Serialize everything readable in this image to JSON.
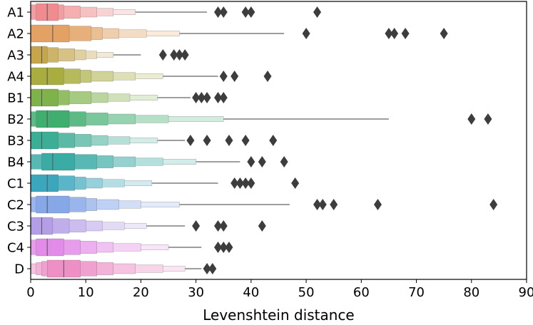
{
  "chart_data": {
    "type": "boxen",
    "title": "",
    "xlabel": "Levenshtein distance",
    "ylabel": "",
    "xlim": [
      0,
      90
    ],
    "xticks": [
      0,
      10,
      20,
      30,
      40,
      50,
      60,
      70,
      80,
      90
    ],
    "grid": false,
    "outlier_color": "#3d3d3d",
    "categories": [
      {
        "name": "A1",
        "color": "#f08c8f",
        "median": 3,
        "levels": [
          [
            1,
            5
          ],
          [
            0,
            6
          ],
          [
            0,
            9
          ],
          [
            0,
            12
          ],
          [
            0,
            15
          ],
          [
            0,
            19
          ]
        ],
        "whisker_max": 32,
        "outliers": [
          34,
          35,
          39,
          40,
          52
        ]
      },
      {
        "name": "A2",
        "color": "#e3a263",
        "median": 4,
        "levels": [
          [
            0,
            7
          ],
          [
            0,
            11
          ],
          [
            0,
            13
          ],
          [
            0,
            16
          ],
          [
            0,
            21
          ],
          [
            0,
            27
          ]
        ],
        "whisker_max": 46,
        "outliers": [
          50,
          65,
          66,
          68,
          75
        ]
      },
      {
        "name": "A3",
        "color": "#c5a64d",
        "median": 2,
        "levels": [
          [
            0,
            3
          ],
          [
            0,
            5
          ],
          [
            0,
            8
          ],
          [
            0,
            10
          ],
          [
            0,
            12
          ],
          [
            0,
            15
          ]
        ],
        "whisker_max": 20,
        "outliers": [
          24,
          26,
          27,
          28
        ]
      },
      {
        "name": "A4",
        "color": "#a9ac3e",
        "median": 3,
        "levels": [
          [
            0,
            6
          ],
          [
            0,
            9
          ],
          [
            0,
            11
          ],
          [
            0,
            15
          ],
          [
            0,
            19
          ],
          [
            0,
            24
          ]
        ],
        "whisker_max": 34,
        "outliers": [
          35,
          37,
          43
        ]
      },
      {
        "name": "B1",
        "color": "#7fb24a",
        "median": 2,
        "levels": [
          [
            0,
            5
          ],
          [
            0,
            7
          ],
          [
            0,
            11
          ],
          [
            0,
            14
          ],
          [
            0,
            18
          ],
          [
            0,
            23
          ]
        ],
        "whisker_max": 29,
        "outliers": [
          30,
          31,
          32,
          34,
          35
        ]
      },
      {
        "name": "B2",
        "color": "#3fae6f",
        "median": 3,
        "levels": [
          [
            1,
            7
          ],
          [
            0,
            10
          ],
          [
            0,
            14
          ],
          [
            0,
            19
          ],
          [
            0,
            25
          ],
          [
            0,
            35
          ]
        ],
        "whisker_max": 65,
        "outliers": [
          80,
          83
        ]
      },
      {
        "name": "B3",
        "color": "#3cae96",
        "median": 2,
        "levels": [
          [
            0,
            5
          ],
          [
            0,
            8
          ],
          [
            0,
            11
          ],
          [
            0,
            14
          ],
          [
            0,
            18
          ],
          [
            0,
            23
          ]
        ],
        "whisker_max": 28,
        "outliers": [
          29,
          32,
          36,
          39,
          44
        ]
      },
      {
        "name": "B4",
        "color": "#3aaba5",
        "median": 4,
        "levels": [
          [
            2,
            8
          ],
          [
            0,
            12
          ],
          [
            0,
            15
          ],
          [
            0,
            19
          ],
          [
            0,
            24
          ],
          [
            0,
            30
          ]
        ],
        "whisker_max": 38,
        "outliers": [
          40,
          42,
          46
        ]
      },
      {
        "name": "C1",
        "color": "#3ba7bd",
        "median": 3,
        "levels": [
          [
            0,
            5
          ],
          [
            0,
            8
          ],
          [
            0,
            10
          ],
          [
            0,
            13
          ],
          [
            0,
            17
          ],
          [
            0,
            22
          ]
        ],
        "whisker_max": 34,
        "outliers": [
          37,
          38,
          39,
          40,
          48
        ]
      },
      {
        "name": "C2",
        "color": "#87a8e8",
        "median": 3,
        "levels": [
          [
            1,
            7
          ],
          [
            0,
            10
          ],
          [
            0,
            12
          ],
          [
            0,
            16
          ],
          [
            0,
            20
          ],
          [
            0,
            27
          ]
        ],
        "whisker_max": 47,
        "outliers": [
          52,
          53,
          55,
          63,
          84
        ]
      },
      {
        "name": "C3",
        "color": "#b59ee8",
        "median": 2,
        "levels": [
          [
            0,
            4
          ],
          [
            0,
            7
          ],
          [
            0,
            10
          ],
          [
            0,
            13
          ],
          [
            0,
            17
          ],
          [
            0,
            21
          ]
        ],
        "whisker_max": 28,
        "outliers": [
          30,
          34,
          35,
          42
        ]
      },
      {
        "name": "C4",
        "color": "#e38be8",
        "median": 3,
        "levels": [
          [
            1,
            6
          ],
          [
            0,
            9
          ],
          [
            0,
            12
          ],
          [
            0,
            15
          ],
          [
            0,
            20
          ],
          [
            0,
            25
          ]
        ],
        "whisker_max": 31,
        "outliers": [
          34,
          35,
          36
        ]
      },
      {
        "name": "D",
        "color": "#ee90c6",
        "median": 6,
        "levels": [
          [
            3,
            9
          ],
          [
            2,
            12
          ],
          [
            1,
            15
          ],
          [
            0,
            19
          ],
          [
            0,
            24
          ],
          [
            0,
            28
          ]
        ],
        "whisker_max": 31,
        "outliers": [
          32,
          33
        ]
      }
    ]
  }
}
